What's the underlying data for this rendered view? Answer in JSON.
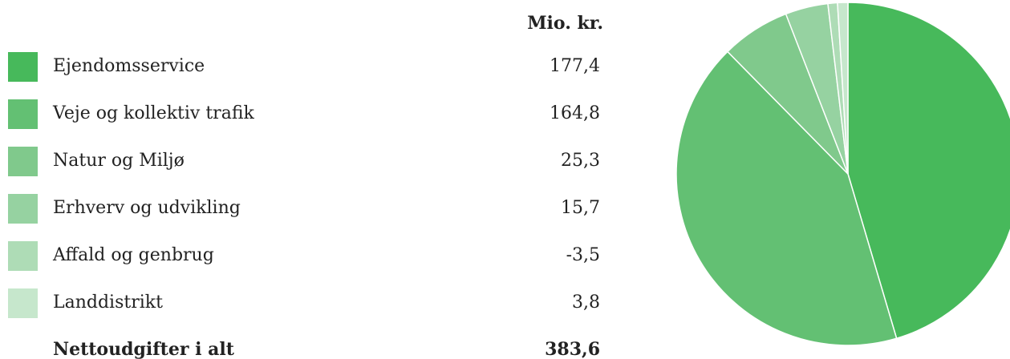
{
  "chart_data": {
    "type": "pie",
    "unit_label": "Mio. kr.",
    "categories": [
      "Ejendomsservice",
      "Veje og kollektiv trafik",
      "Natur og Miljø",
      "Erhverv og udvikling",
      "Affald og genbrug",
      "Landdistrikt"
    ],
    "values": [
      177.4,
      164.8,
      25.3,
      15.7,
      -3.5,
      3.8
    ],
    "value_labels": [
      "177,4",
      "164,8",
      "25,3",
      "15,7",
      "-3,5",
      "3,8"
    ],
    "colors": [
      "#47b95b",
      "#63c073",
      "#80c98c",
      "#96d2a1",
      "#aedcb6",
      "#c6e7cc"
    ],
    "total": {
      "label": "Nettoudgifter i alt",
      "value": "383,6"
    }
  }
}
